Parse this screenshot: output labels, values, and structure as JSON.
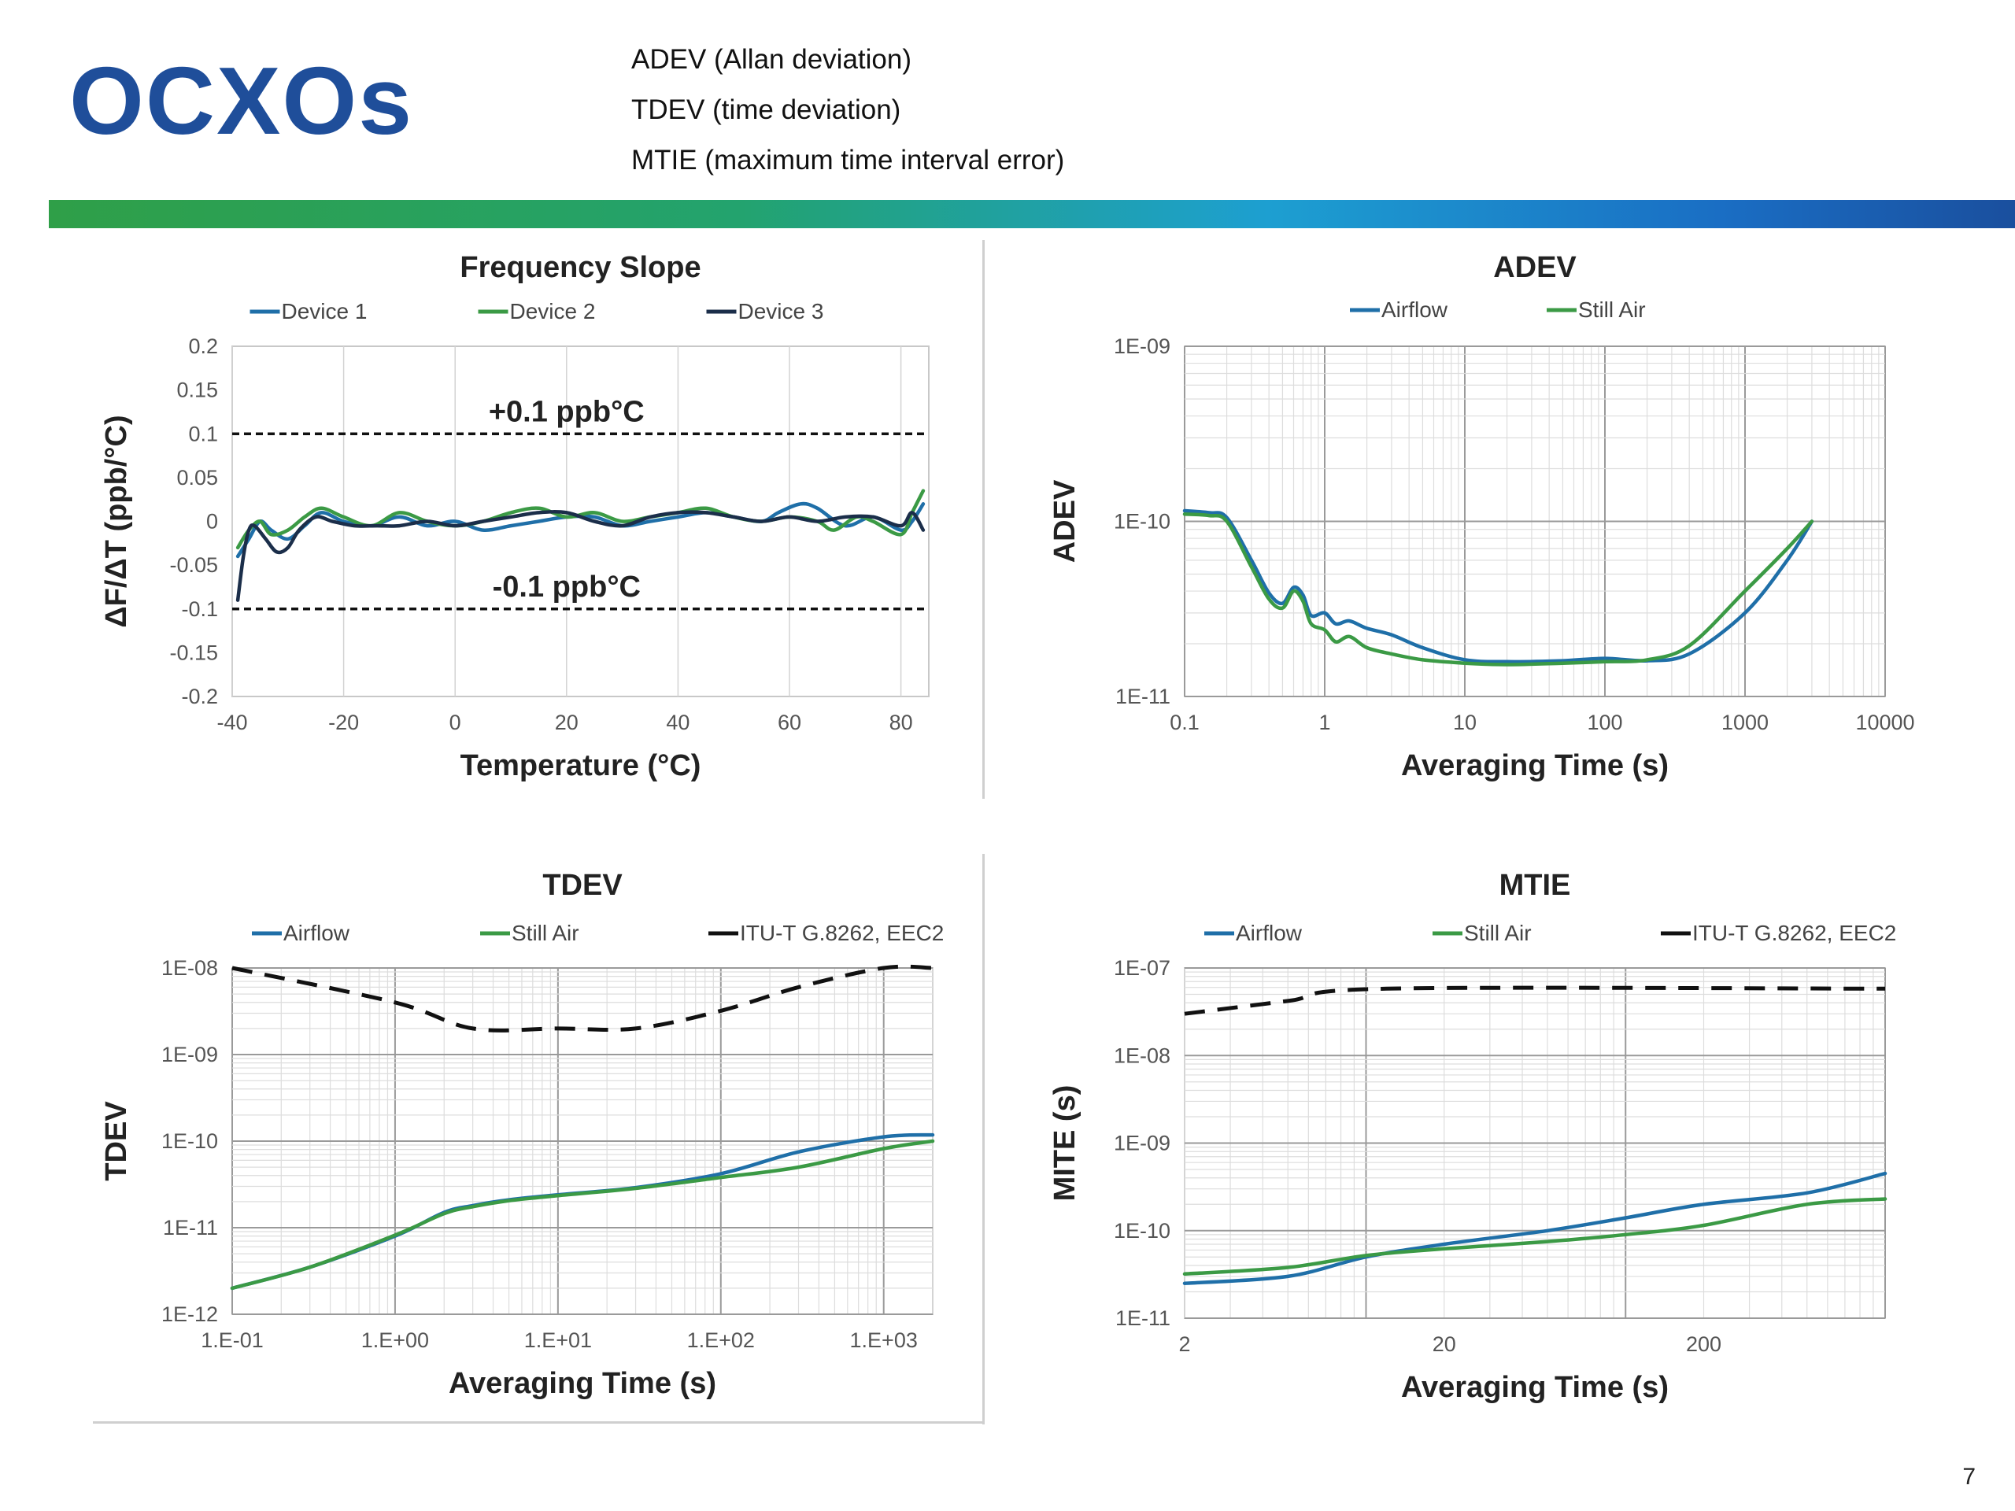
{
  "header": {
    "title": "OCXOs",
    "notes": [
      "ADEV (Allan deviation)",
      "TDEV (time deviation)",
      "MTIE (maximum time interval error)"
    ],
    "page_number": "7"
  },
  "colors": {
    "title": "#1f4e9a",
    "device1": "#1f6fa8",
    "device2": "#3b9a45",
    "device3": "#1b2e4a",
    "airflow": "#1f6fa8",
    "still_air": "#3b9a45",
    "itu": "#111111"
  },
  "chart_data": [
    {
      "id": "freq",
      "type": "line",
      "title": "Frequency Slope",
      "xlabel": "Temperature (°C)",
      "ylabel": "ΔF/ΔT (ppb/°C)",
      "xscale": "linear",
      "yscale": "linear",
      "xlim": [
        -40,
        85
      ],
      "ylim": [
        -0.2,
        0.2
      ],
      "xticks": [
        -40,
        -20,
        0,
        20,
        40,
        60,
        80
      ],
      "xticklabels": [
        "-40",
        "-20",
        "0",
        "20",
        "40",
        "60",
        "80"
      ],
      "yticks": [
        0.2,
        0.15,
        0.1,
        0.05,
        0,
        -0.05,
        -0.1,
        -0.15,
        -0.2
      ],
      "yticklabels": [
        "0.2",
        "0.15",
        "0.1",
        "0.05",
        "0",
        "-0.05",
        "-0.1",
        "-0.15",
        "-0.2"
      ],
      "grid": "vertical",
      "legend": "top",
      "series": [
        {
          "name": "Device 1",
          "color": "#1f6fa8",
          "x": [
            -39,
            -37,
            -35,
            -33,
            -30,
            -27,
            -24,
            -20,
            -15,
            -10,
            -5,
            0,
            5,
            10,
            15,
            20,
            25,
            30,
            35,
            40,
            45,
            50,
            55,
            58,
            62,
            65,
            70,
            75,
            80,
            82,
            84
          ],
          "y": [
            -0.04,
            -0.02,
            0.0,
            -0.01,
            -0.02,
            -0.005,
            0.01,
            0.0,
            -0.005,
            0.005,
            -0.005,
            0.0,
            -0.01,
            -0.005,
            0.0,
            0.005,
            0.005,
            -0.005,
            0.0,
            0.005,
            0.01,
            0.005,
            0.0,
            0.01,
            0.02,
            0.015,
            -0.005,
            0.005,
            -0.01,
            0.0,
            0.02
          ]
        },
        {
          "name": "Device 2",
          "color": "#3b9a45",
          "x": [
            -39,
            -37,
            -35,
            -33,
            -30,
            -27,
            -24,
            -20,
            -15,
            -10,
            -5,
            0,
            5,
            10,
            15,
            20,
            25,
            30,
            35,
            40,
            45,
            50,
            55,
            60,
            65,
            68,
            72,
            75,
            80,
            82,
            84
          ],
          "y": [
            -0.03,
            -0.01,
            0.0,
            -0.015,
            -0.01,
            0.005,
            0.015,
            0.005,
            -0.005,
            0.01,
            0.0,
            -0.005,
            0.0,
            0.01,
            0.015,
            0.005,
            0.01,
            0.0,
            0.005,
            0.01,
            0.015,
            0.005,
            0.0,
            0.005,
            0.0,
            -0.01,
            0.005,
            0.0,
            -0.015,
            0.01,
            0.035
          ]
        },
        {
          "name": "Device 3",
          "color": "#1b2e4a",
          "x": [
            -39,
            -38,
            -37,
            -36,
            -34,
            -32,
            -30,
            -28,
            -25,
            -22,
            -18,
            -14,
            -10,
            -5,
            0,
            5,
            10,
            15,
            20,
            25,
            30,
            35,
            40,
            45,
            50,
            55,
            60,
            65,
            70,
            75,
            80,
            82,
            84
          ],
          "y": [
            -0.09,
            -0.04,
            -0.01,
            -0.005,
            -0.02,
            -0.035,
            -0.03,
            -0.01,
            0.005,
            0.0,
            -0.005,
            -0.005,
            -0.005,
            0.0,
            -0.005,
            0.0,
            0.005,
            0.01,
            0.01,
            0.0,
            -0.005,
            0.005,
            0.01,
            0.01,
            0.005,
            0.0,
            0.005,
            0.0,
            0.005,
            0.005,
            -0.005,
            0.01,
            -0.01
          ]
        }
      ],
      "reference_lines": [
        {
          "y": 0.1,
          "label": "+0.1 ppb°C",
          "label_x": 20,
          "label_y": 0.125
        },
        {
          "y": -0.1,
          "label": "-0.1 ppb°C",
          "label_x": 20,
          "label_y": -0.075
        }
      ]
    },
    {
      "id": "adev",
      "type": "line",
      "title": "ADEV",
      "xlabel": "Averaging Time (s)",
      "ylabel": "ADEV",
      "xscale": "log",
      "yscale": "log",
      "xlim": [
        0.1,
        10000
      ],
      "ylim": [
        1e-11,
        1e-09
      ],
      "xticks": [
        0.1,
        1,
        10,
        100,
        1000,
        10000
      ],
      "xticklabels": [
        "0.1",
        "1",
        "10",
        "100",
        "1000",
        "10000"
      ],
      "yticks": [
        1e-09,
        1e-10,
        1e-11
      ],
      "yticklabels": [
        "1E-09",
        "1E-10",
        "1E-11"
      ],
      "grid": "log-both",
      "legend": "top",
      "series": [
        {
          "name": "Airflow",
          "color": "#1f6fa8",
          "x": [
            0.1,
            0.15,
            0.2,
            0.3,
            0.4,
            0.5,
            0.6,
            0.7,
            0.8,
            1,
            1.2,
            1.5,
            2,
            3,
            5,
            10,
            20,
            50,
            100,
            200,
            400,
            1000,
            2000,
            3000
          ],
          "y": [
            1.15e-10,
            1.12e-10,
            1.05e-10,
            6e-11,
            3.9e-11,
            3.4e-11,
            4.2e-11,
            3.8e-11,
            2.9e-11,
            3e-11,
            2.6e-11,
            2.7e-11,
            2.45e-11,
            2.25e-11,
            1.9e-11,
            1.62e-11,
            1.58e-11,
            1.6e-11,
            1.65e-11,
            1.6e-11,
            1.75e-11,
            3e-11,
            6e-11,
            1e-10
          ]
        },
        {
          "name": "Still Air",
          "color": "#3b9a45",
          "x": [
            0.1,
            0.15,
            0.2,
            0.3,
            0.4,
            0.5,
            0.6,
            0.7,
            0.8,
            1,
            1.2,
            1.5,
            2,
            3,
            5,
            10,
            20,
            50,
            100,
            200,
            400,
            1000,
            2000,
            3000
          ],
          "y": [
            1.1e-10,
            1.08e-10,
            1e-10,
            5.5e-11,
            3.6e-11,
            3.2e-11,
            4e-11,
            3.5e-11,
            2.6e-11,
            2.4e-11,
            2.05e-11,
            2.2e-11,
            1.9e-11,
            1.75e-11,
            1.62e-11,
            1.55e-11,
            1.52e-11,
            1.55e-11,
            1.58e-11,
            1.62e-11,
            1.95e-11,
            4e-11,
            7e-11,
            1e-10
          ]
        }
      ]
    },
    {
      "id": "tdev",
      "type": "line",
      "title": "TDEV",
      "xlabel": "Averaging Time (s)",
      "ylabel": "TDEV",
      "xscale": "log",
      "yscale": "log",
      "xlim": [
        0.1,
        2000
      ],
      "ylim": [
        1e-12,
        1e-08
      ],
      "xticks": [
        0.1,
        1,
        10,
        100,
        1000
      ],
      "xticklabels": [
        "1.E-01",
        "1.E+00",
        "1.E+01",
        "1.E+02",
        "1.E+03"
      ],
      "yticks": [
        1e-08,
        1e-09,
        1e-10,
        1e-11,
        1e-12
      ],
      "yticklabels": [
        "1E-08",
        "1E-09",
        "1E-10",
        "1E-11",
        "1E-12"
      ],
      "grid": "log-both",
      "legend": "top",
      "series": [
        {
          "name": "Airflow",
          "color": "#1f6fa8",
          "x": [
            0.1,
            0.3,
            1,
            2,
            3,
            5,
            10,
            30,
            100,
            300,
            1000,
            2000
          ],
          "y": [
            2e-12,
            3.5e-12,
            8e-12,
            1.5e-11,
            1.8e-11,
            2.1e-11,
            2.4e-11,
            2.9e-11,
            4.2e-11,
            7.5e-11,
            1.12e-10,
            1.18e-10
          ]
        },
        {
          "name": "Still Air",
          "color": "#3b9a45",
          "x": [
            0.1,
            0.3,
            1,
            2,
            3,
            5,
            10,
            30,
            100,
            300,
            1000,
            2000
          ],
          "y": [
            2e-12,
            3.5e-12,
            8.2e-12,
            1.45e-11,
            1.75e-11,
            2.05e-11,
            2.35e-11,
            2.85e-11,
            3.8e-11,
            5e-11,
            8.2e-11,
            1e-10
          ]
        },
        {
          "name": "ITU-T G.8262, EEC2",
          "color": "#111111",
          "dashed": true,
          "x": [
            0.1,
            1,
            3,
            10,
            30,
            100,
            300,
            1000,
            2000
          ],
          "y": [
            1e-08,
            4e-09,
            2e-09,
            2e-09,
            2e-09,
            3.2e-09,
            6e-09,
            1e-08,
            1e-08
          ]
        }
      ]
    },
    {
      "id": "mtie",
      "type": "line",
      "title": "MTIE",
      "xlabel": "Averaging Time (s)",
      "ylabel": "MITE (s)",
      "xscale": "log",
      "yscale": "log",
      "xlim": [
        2,
        1000
      ],
      "ylim": [
        1e-11,
        1e-07
      ],
      "xticks": [
        2,
        20,
        200
      ],
      "xticklabels": [
        "2",
        "20",
        "200"
      ],
      "yticks": [
        1e-07,
        1e-08,
        1e-09,
        1e-10,
        1e-11
      ],
      "yticklabels": [
        "1E-07",
        "1E-08",
        "1E-09",
        "1E-10",
        "1E-11"
      ],
      "grid": "log-both",
      "legend": "top",
      "series": [
        {
          "name": "Airflow",
          "color": "#1f6fa8",
          "x": [
            2,
            5,
            10,
            20,
            50,
            100,
            200,
            500,
            1000
          ],
          "y": [
            2.5e-11,
            3e-11,
            5e-11,
            7e-11,
            1e-10,
            1.4e-10,
            2e-10,
            2.7e-10,
            4.5e-10
          ]
        },
        {
          "name": "Still Air",
          "color": "#3b9a45",
          "x": [
            2,
            5,
            10,
            20,
            50,
            100,
            200,
            500,
            1000
          ],
          "y": [
            3.2e-11,
            3.8e-11,
            5.2e-11,
            6.2e-11,
            7.5e-11,
            9e-11,
            1.15e-10,
            2e-10,
            2.3e-10
          ]
        },
        {
          "name": "ITU-T G.8262, EEC2",
          "color": "#111111",
          "dashed": true,
          "x": [
            2,
            5,
            12,
            1000
          ],
          "y": [
            3e-08,
            4.2e-08,
            5.8e-08,
            5.8e-08
          ]
        }
      ]
    }
  ]
}
